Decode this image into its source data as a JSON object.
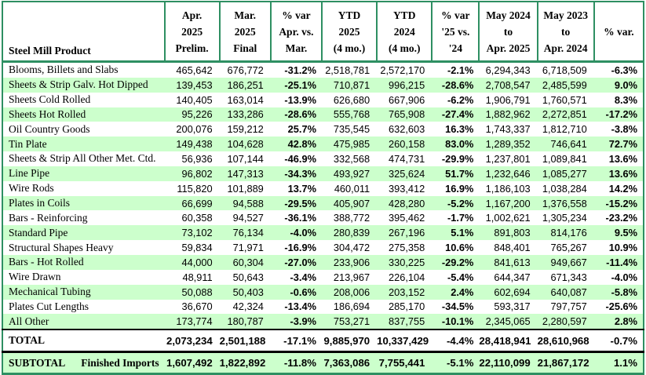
{
  "colors": {
    "border": "#2e8f62",
    "alt_row": "#ccffcc"
  },
  "header": {
    "product_label": "Steel Mill Product",
    "columns": [
      {
        "lines": [
          "Apr.",
          "2025",
          "Prelim."
        ]
      },
      {
        "lines": [
          "Mar.",
          "2025",
          "Final"
        ]
      },
      {
        "lines": [
          "% var",
          "Apr. vs.",
          "Mar."
        ]
      },
      {
        "lines": [
          "YTD",
          "2025",
          "(4 mo.)"
        ]
      },
      {
        "lines": [
          "YTD",
          "2024",
          "(4 mo.)"
        ]
      },
      {
        "lines": [
          "% var",
          "'25 vs.",
          "'24"
        ]
      },
      {
        "lines": [
          "May 2024",
          "to",
          "Apr. 2025"
        ]
      },
      {
        "lines": [
          "May 2023",
          "to",
          "Apr. 2024"
        ]
      },
      {
        "lines": [
          "% var."
        ]
      }
    ]
  },
  "rows": [
    {
      "product": "Blooms, Billets and Slabs",
      "values": [
        "465,642",
        "676,772",
        "-31.2%",
        "2,518,781",
        "2,572,170",
        "-2.1%",
        "6,294,343",
        "6,718,509",
        "-6.3%"
      ]
    },
    {
      "product": "Sheets & Strip Galv. Hot Dipped",
      "values": [
        "139,453",
        "186,251",
        "-25.1%",
        "710,871",
        "996,215",
        "-28.6%",
        "2,708,547",
        "2,485,599",
        "9.0%"
      ]
    },
    {
      "product": "Sheets Cold Rolled",
      "values": [
        "140,405",
        "163,014",
        "-13.9%",
        "626,680",
        "667,906",
        "-6.2%",
        "1,906,791",
        "1,760,571",
        "8.3%"
      ]
    },
    {
      "product": "Sheets Hot Rolled",
      "values": [
        "95,226",
        "133,286",
        "-28.6%",
        "555,768",
        "765,908",
        "-27.4%",
        "1,882,962",
        "2,272,851",
        "-17.2%"
      ]
    },
    {
      "product": "Oil Country Goods",
      "values": [
        "200,076",
        "159,212",
        "25.7%",
        "735,545",
        "632,603",
        "16.3%",
        "1,743,337",
        "1,812,710",
        "-3.8%"
      ]
    },
    {
      "product": "Tin Plate",
      "values": [
        "149,438",
        "104,628",
        "42.8%",
        "475,985",
        "260,158",
        "83.0%",
        "1,289,352",
        "746,641",
        "72.7%"
      ]
    },
    {
      "product": "Sheets & Strip All Other Met. Ctd.",
      "values": [
        "56,936",
        "107,144",
        "-46.9%",
        "332,568",
        "474,731",
        "-29.9%",
        "1,237,801",
        "1,089,841",
        "13.6%"
      ]
    },
    {
      "product": "Line Pipe",
      "values": [
        "96,802",
        "147,313",
        "-34.3%",
        "493,927",
        "325,624",
        "51.7%",
        "1,232,646",
        "1,085,277",
        "13.6%"
      ]
    },
    {
      "product": "Wire Rods",
      "values": [
        "115,820",
        "101,889",
        "13.7%",
        "460,011",
        "393,412",
        "16.9%",
        "1,186,103",
        "1,038,284",
        "14.2%"
      ]
    },
    {
      "product": "Plates in Coils",
      "values": [
        "66,699",
        "94,588",
        "-29.5%",
        "405,907",
        "428,280",
        "-5.2%",
        "1,167,200",
        "1,376,558",
        "-15.2%"
      ]
    },
    {
      "product": "Bars - Reinforcing",
      "values": [
        "60,358",
        "94,527",
        "-36.1%",
        "388,772",
        "395,462",
        "-1.7%",
        "1,002,621",
        "1,305,234",
        "-23.2%"
      ]
    },
    {
      "product": "Standard Pipe",
      "values": [
        "73,102",
        "76,134",
        "-4.0%",
        "280,839",
        "267,196",
        "5.1%",
        "891,803",
        "814,176",
        "9.5%"
      ]
    },
    {
      "product": "Structural Shapes Heavy",
      "values": [
        "59,834",
        "71,971",
        "-16.9%",
        "304,472",
        "275,358",
        "10.6%",
        "848,401",
        "765,267",
        "10.9%"
      ]
    },
    {
      "product": "Bars - Hot Rolled",
      "values": [
        "44,000",
        "60,304",
        "-27.0%",
        "233,906",
        "330,225",
        "-29.2%",
        "841,613",
        "949,667",
        "-11.4%"
      ]
    },
    {
      "product": "Wire Drawn",
      "values": [
        "48,911",
        "50,643",
        "-3.4%",
        "213,967",
        "226,104",
        "-5.4%",
        "644,347",
        "671,343",
        "-4.0%"
      ]
    },
    {
      "product": "Mechanical Tubing",
      "values": [
        "50,088",
        "50,403",
        "-0.6%",
        "208,006",
        "203,152",
        "2.4%",
        "602,694",
        "640,087",
        "-5.8%"
      ]
    },
    {
      "product": "Plates Cut Lengths",
      "values": [
        "36,670",
        "42,324",
        "-13.4%",
        "186,694",
        "285,170",
        "-34.5%",
        "593,317",
        "797,757",
        "-25.6%"
      ]
    },
    {
      "product": "All Other",
      "values": [
        "173,774",
        "180,787",
        "-3.9%",
        "753,271",
        "837,755",
        "-10.1%",
        "2,345,065",
        "2,280,597",
        "2.8%"
      ]
    }
  ],
  "total": {
    "label": "TOTAL",
    "values": [
      "2,073,234",
      "2,501,188",
      "-17.1%",
      "9,885,970",
      "10,337,429",
      "-4.4%",
      "28,418,941",
      "28,610,968",
      "-0.7%"
    ]
  },
  "subtotal": {
    "label": "SUBTOTAL",
    "label2": "Finished Imports",
    "values": [
      "1,607,492",
      "1,822,892",
      "-11.8%",
      "7,363,086",
      "7,755,441",
      "-5.1%",
      "22,110,099",
      "21,867,172",
      "1.1%"
    ]
  }
}
